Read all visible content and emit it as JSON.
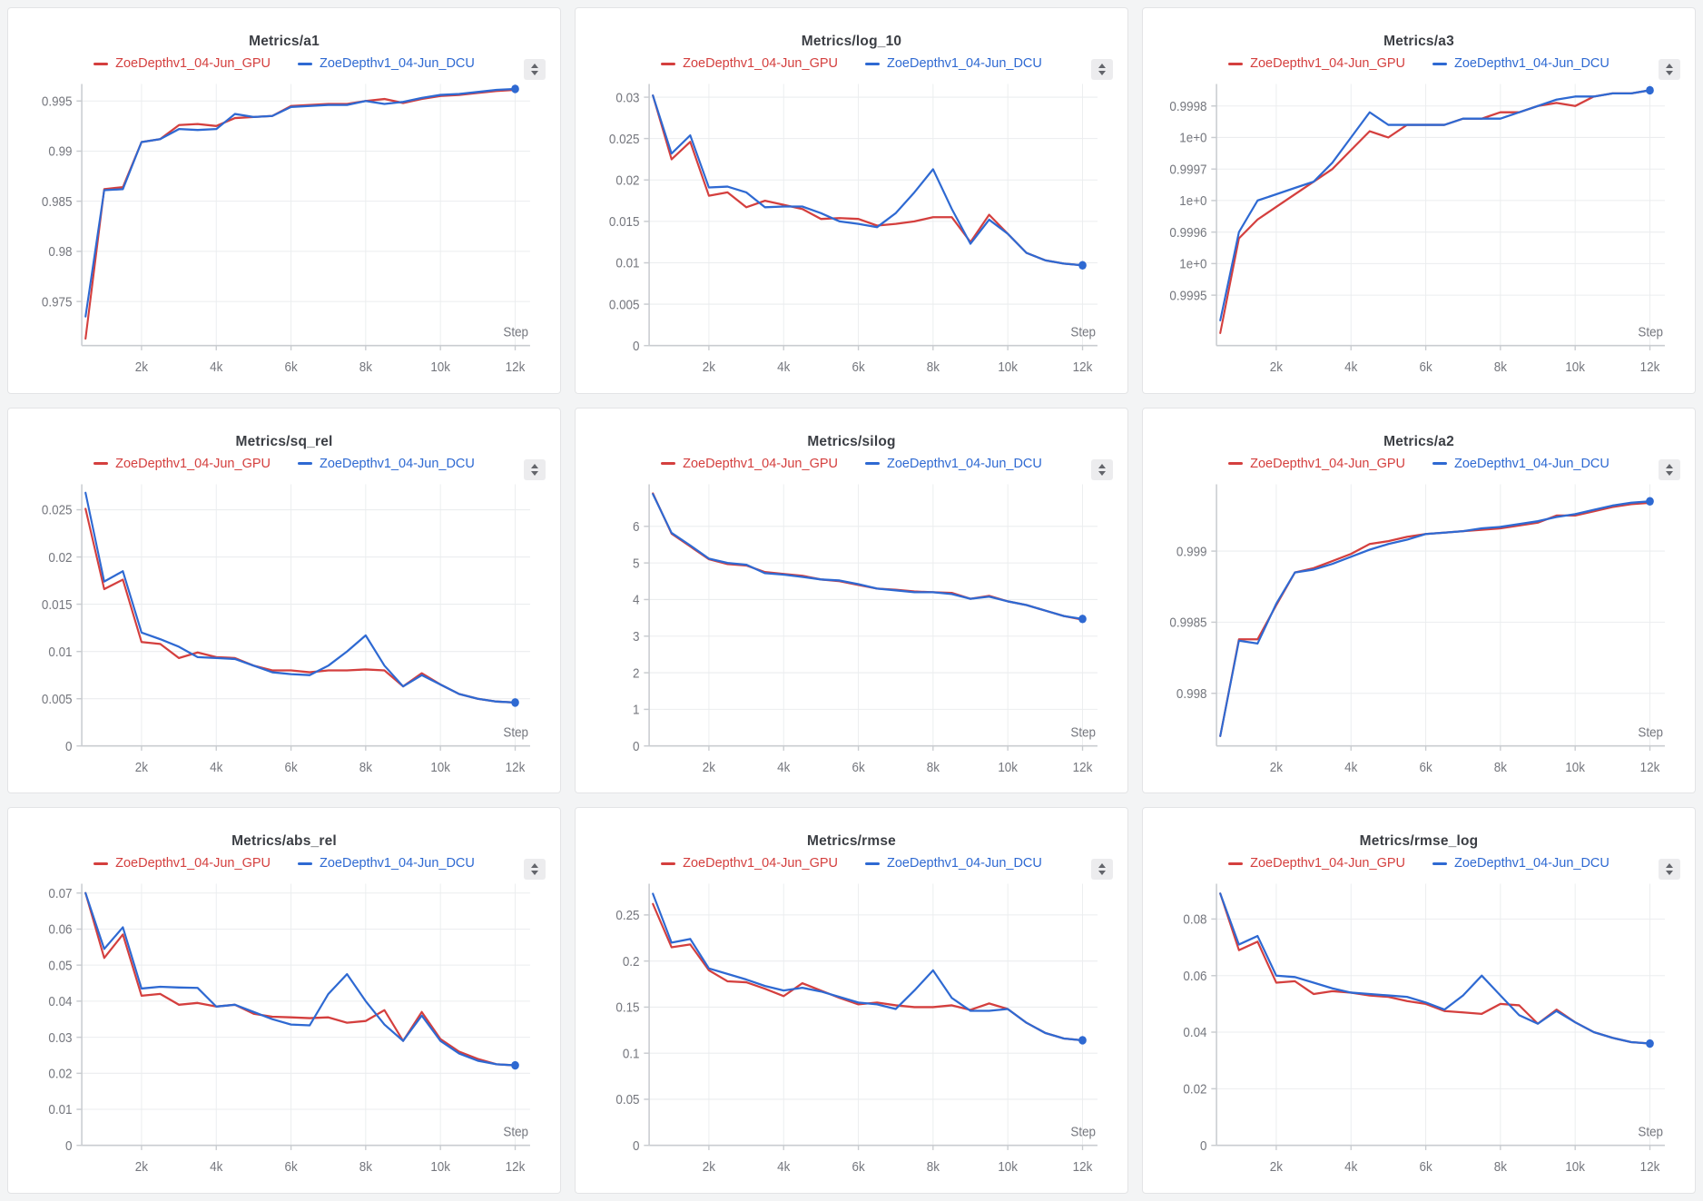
{
  "page": {
    "background": "#f3f4f5",
    "x_axis_label": "Step"
  },
  "runs": [
    {
      "name": "ZoeDepthv1_04-Jun_GPU",
      "color": "#d43f3e"
    },
    {
      "name": "ZoeDepthv1_04-Jun_DCU",
      "color": "#2e69d2"
    }
  ],
  "steps": [
    500,
    1000,
    1500,
    2000,
    2500,
    3000,
    3500,
    4000,
    4500,
    5000,
    5500,
    6000,
    6500,
    7000,
    7500,
    8000,
    8500,
    9000,
    9500,
    10000,
    10500,
    11000,
    11500,
    12000
  ],
  "xlim": [
    400,
    12400
  ],
  "x_ticks": [
    {
      "v": 2000,
      "label": "2k"
    },
    {
      "v": 4000,
      "label": "4k"
    },
    {
      "v": 6000,
      "label": "6k"
    },
    {
      "v": 8000,
      "label": "8k"
    },
    {
      "v": 10000,
      "label": "10k"
    },
    {
      "v": 12000,
      "label": "12k"
    }
  ],
  "chart_data": [
    {
      "type": "line",
      "title": "Metrics/a1",
      "xlabel": "Step",
      "grid": true,
      "legend_position": "top",
      "ylim": [
        0.9706,
        0.9967
      ],
      "y_ticks": [
        {
          "v": 0.975,
          "label": "0.975"
        },
        {
          "v": 0.98,
          "label": "0.98"
        },
        {
          "v": 0.985,
          "label": "0.985"
        },
        {
          "v": 0.99,
          "label": "0.99"
        },
        {
          "v": 0.995,
          "label": "0.995"
        }
      ],
      "series": [
        {
          "name": "ZoeDepthv1_04-Jun_GPU",
          "values": [
            0.9713,
            0.9862,
            0.9864,
            0.9909,
            0.9912,
            0.9926,
            0.9927,
            0.9925,
            0.9933,
            0.9934,
            0.9935,
            0.9945,
            0.9946,
            0.9947,
            0.9947,
            0.995,
            0.9952,
            0.9948,
            0.9952,
            0.9955,
            0.9956,
            0.9958,
            0.996,
            0.9961
          ]
        },
        {
          "name": "ZoeDepthv1_04-Jun_DCU",
          "values": [
            0.9735,
            0.9861,
            0.9862,
            0.9909,
            0.9912,
            0.9922,
            0.9921,
            0.9922,
            0.9937,
            0.9934,
            0.9935,
            0.9944,
            0.9945,
            0.9946,
            0.9946,
            0.995,
            0.9947,
            0.9949,
            0.9953,
            0.9956,
            0.9957,
            0.9959,
            0.9961,
            0.9962
          ]
        }
      ]
    },
    {
      "type": "line",
      "title": "Metrics/log_10",
      "xlabel": "Step",
      "grid": true,
      "legend_position": "top",
      "ylim": [
        0,
        0.0316
      ],
      "y_ticks": [
        {
          "v": 0,
          "label": "0"
        },
        {
          "v": 0.005,
          "label": "0.005"
        },
        {
          "v": 0.01,
          "label": "0.01"
        },
        {
          "v": 0.015,
          "label": "0.015"
        },
        {
          "v": 0.02,
          "label": "0.02"
        },
        {
          "v": 0.025,
          "label": "0.025"
        },
        {
          "v": 0.03,
          "label": "0.03"
        }
      ],
      "series": [
        {
          "name": "ZoeDepthv1_04-Jun_GPU",
          "values": [
            0.0302,
            0.0225,
            0.0246,
            0.0181,
            0.0185,
            0.0167,
            0.0175,
            0.017,
            0.0165,
            0.0153,
            0.0154,
            0.0153,
            0.0145,
            0.0147,
            0.015,
            0.0155,
            0.0155,
            0.0125,
            0.0158,
            0.0135,
            0.0112,
            0.0103,
            0.0099,
            0.0097
          ]
        },
        {
          "name": "ZoeDepthv1_04-Jun_DCU",
          "values": [
            0.0302,
            0.0232,
            0.0254,
            0.0191,
            0.0192,
            0.0185,
            0.0167,
            0.0168,
            0.0168,
            0.016,
            0.015,
            0.0147,
            0.0143,
            0.016,
            0.0185,
            0.0213,
            0.0165,
            0.0123,
            0.0152,
            0.0135,
            0.0112,
            0.0103,
            0.0099,
            0.0097
          ]
        }
      ]
    },
    {
      "type": "line",
      "title": "Metrics/a3",
      "xlabel": "Step",
      "grid": true,
      "legend_position": "top",
      "ylim": [
        0.99942,
        0.999835
      ],
      "y_ticks": [
        {
          "v": 0.9995,
          "label": "0.9995"
        },
        {
          "v": 0.99955,
          "label": "1e+0"
        },
        {
          "v": 0.9996,
          "label": "0.9996"
        },
        {
          "v": 0.99965,
          "label": "1e+0"
        },
        {
          "v": 0.9997,
          "label": "0.9997"
        },
        {
          "v": 0.99975,
          "label": "1e+0"
        },
        {
          "v": 0.9998,
          "label": "0.9998"
        }
      ],
      "series": [
        {
          "name": "ZoeDepthv1_04-Jun_GPU",
          "values": [
            0.99944,
            0.99959,
            0.99962,
            0.99964,
            0.99966,
            0.99968,
            0.9997,
            0.99973,
            0.99976,
            0.99975,
            0.99977,
            0.99977,
            0.99977,
            0.99978,
            0.99978,
            0.99979,
            0.99979,
            0.9998,
            0.999805,
            0.9998,
            0.999815,
            0.99982,
            0.99982,
            0.999825
          ]
        },
        {
          "name": "ZoeDepthv1_04-Jun_DCU",
          "values": [
            0.99946,
            0.9996,
            0.99965,
            0.99966,
            0.99967,
            0.99968,
            0.99971,
            0.99975,
            0.99979,
            0.99977,
            0.99977,
            0.99977,
            0.99977,
            0.99978,
            0.99978,
            0.99978,
            0.99979,
            0.9998,
            0.99981,
            0.999815,
            0.999815,
            0.99982,
            0.99982,
            0.999825
          ]
        }
      ]
    },
    {
      "type": "line",
      "title": "Metrics/sq_rel",
      "xlabel": "Step",
      "grid": true,
      "legend_position": "top",
      "ylim": [
        0,
        0.0277
      ],
      "y_ticks": [
        {
          "v": 0,
          "label": "0"
        },
        {
          "v": 0.005,
          "label": "0.005"
        },
        {
          "v": 0.01,
          "label": "0.01"
        },
        {
          "v": 0.015,
          "label": "0.015"
        },
        {
          "v": 0.02,
          "label": "0.02"
        },
        {
          "v": 0.025,
          "label": "0.025"
        }
      ],
      "series": [
        {
          "name": "ZoeDepthv1_04-Jun_GPU",
          "values": [
            0.0251,
            0.0166,
            0.0176,
            0.011,
            0.0108,
            0.0093,
            0.0099,
            0.0094,
            0.0093,
            0.0085,
            0.008,
            0.008,
            0.0078,
            0.008,
            0.008,
            0.0081,
            0.008,
            0.0063,
            0.0077,
            0.0065,
            0.0055,
            0.005,
            0.0047,
            0.0046
          ]
        },
        {
          "name": "ZoeDepthv1_04-Jun_DCU",
          "values": [
            0.0268,
            0.0174,
            0.0185,
            0.012,
            0.0113,
            0.0105,
            0.0094,
            0.0093,
            0.0092,
            0.0085,
            0.0078,
            0.0076,
            0.0075,
            0.0085,
            0.01,
            0.0117,
            0.0085,
            0.0063,
            0.0075,
            0.0065,
            0.0055,
            0.005,
            0.0047,
            0.0046
          ]
        }
      ]
    },
    {
      "type": "line",
      "title": "Metrics/silog",
      "xlabel": "Step",
      "grid": true,
      "legend_position": "top",
      "ylim": [
        0,
        7.15
      ],
      "y_ticks": [
        {
          "v": 0,
          "label": "0"
        },
        {
          "v": 1,
          "label": "1"
        },
        {
          "v": 2,
          "label": "2"
        },
        {
          "v": 3,
          "label": "3"
        },
        {
          "v": 4,
          "label": "4"
        },
        {
          "v": 5,
          "label": "5"
        },
        {
          "v": 6,
          "label": "6"
        }
      ],
      "series": [
        {
          "name": "ZoeDepthv1_04-Jun_GPU",
          "values": [
            6.9,
            5.8,
            5.45,
            5.1,
            4.97,
            4.93,
            4.75,
            4.7,
            4.65,
            4.55,
            4.5,
            4.4,
            4.3,
            4.27,
            4.22,
            4.2,
            4.18,
            4.02,
            4.1,
            3.95,
            3.85,
            3.7,
            3.55,
            3.45
          ]
        },
        {
          "name": "ZoeDepthv1_04-Jun_DCU",
          "values": [
            6.88,
            5.82,
            5.48,
            5.12,
            5.0,
            4.95,
            4.72,
            4.68,
            4.62,
            4.55,
            4.52,
            4.42,
            4.3,
            4.25,
            4.2,
            4.2,
            4.15,
            4.02,
            4.08,
            3.95,
            3.85,
            3.7,
            3.55,
            3.47
          ]
        }
      ]
    },
    {
      "type": "line",
      "title": "Metrics/a2",
      "xlabel": "Step",
      "grid": true,
      "legend_position": "top",
      "ylim": [
        0.99763,
        0.99947
      ],
      "y_ticks": [
        {
          "v": 0.998,
          "label": "0.998"
        },
        {
          "v": 0.9985,
          "label": "0.9985"
        },
        {
          "v": 0.999,
          "label": "0.999"
        }
      ],
      "series": [
        {
          "name": "ZoeDepthv1_04-Jun_GPU",
          "values": [
            0.9977,
            0.99838,
            0.99838,
            0.99862,
            0.99885,
            0.99888,
            0.99893,
            0.99898,
            0.99905,
            0.99907,
            0.9991,
            0.99912,
            0.99913,
            0.99914,
            0.99915,
            0.99916,
            0.99918,
            0.9992,
            0.99925,
            0.99925,
            0.99928,
            0.99931,
            0.99933,
            0.99934
          ]
        },
        {
          "name": "ZoeDepthv1_04-Jun_DCU",
          "values": [
            0.9977,
            0.99837,
            0.99835,
            0.99863,
            0.99885,
            0.99887,
            0.99891,
            0.99896,
            0.99901,
            0.99905,
            0.99908,
            0.99912,
            0.99913,
            0.99914,
            0.99916,
            0.99917,
            0.99919,
            0.99921,
            0.99924,
            0.99926,
            0.99929,
            0.99932,
            0.99934,
            0.99935
          ]
        }
      ]
    },
    {
      "type": "line",
      "title": "Metrics/abs_rel",
      "xlabel": "Step",
      "grid": true,
      "legend_position": "top",
      "ylim": [
        0,
        0.0726
      ],
      "y_ticks": [
        {
          "v": 0,
          "label": "0"
        },
        {
          "v": 0.01,
          "label": "0.01"
        },
        {
          "v": 0.02,
          "label": "0.02"
        },
        {
          "v": 0.03,
          "label": "0.03"
        },
        {
          "v": 0.04,
          "label": "0.04"
        },
        {
          "v": 0.05,
          "label": "0.05"
        },
        {
          "v": 0.06,
          "label": "0.06"
        },
        {
          "v": 0.07,
          "label": "0.07"
        }
      ],
      "series": [
        {
          "name": "ZoeDepthv1_04-Jun_GPU",
          "values": [
            0.07,
            0.052,
            0.0585,
            0.0415,
            0.042,
            0.039,
            0.0395,
            0.0385,
            0.039,
            0.0365,
            0.0357,
            0.0355,
            0.0353,
            0.0355,
            0.034,
            0.0345,
            0.0375,
            0.029,
            0.037,
            0.0295,
            0.026,
            0.024,
            0.0225,
            0.0222
          ]
        },
        {
          "name": "ZoeDepthv1_04-Jun_DCU",
          "values": [
            0.07,
            0.0545,
            0.0605,
            0.0435,
            0.044,
            0.0438,
            0.0437,
            0.0385,
            0.039,
            0.037,
            0.035,
            0.0335,
            0.0333,
            0.042,
            0.0475,
            0.04,
            0.0335,
            0.029,
            0.036,
            0.029,
            0.0255,
            0.0235,
            0.0225,
            0.0222
          ]
        }
      ]
    },
    {
      "type": "line",
      "title": "Metrics/rmse",
      "xlabel": "Step",
      "grid": true,
      "legend_position": "top",
      "ylim": [
        0,
        0.284
      ],
      "y_ticks": [
        {
          "v": 0,
          "label": "0"
        },
        {
          "v": 0.05,
          "label": "0.05"
        },
        {
          "v": 0.1,
          "label": "0.1"
        },
        {
          "v": 0.15,
          "label": "0.15"
        },
        {
          "v": 0.2,
          "label": "0.2"
        },
        {
          "v": 0.25,
          "label": "0.25"
        }
      ],
      "series": [
        {
          "name": "ZoeDepthv1_04-Jun_GPU",
          "values": [
            0.262,
            0.215,
            0.218,
            0.19,
            0.178,
            0.177,
            0.17,
            0.162,
            0.176,
            0.168,
            0.16,
            0.153,
            0.155,
            0.152,
            0.15,
            0.15,
            0.152,
            0.147,
            0.154,
            0.148,
            0.133,
            0.122,
            0.116,
            0.114
          ]
        },
        {
          "name": "ZoeDepthv1_04-Jun_DCU",
          "values": [
            0.273,
            0.22,
            0.224,
            0.192,
            0.186,
            0.18,
            0.173,
            0.168,
            0.171,
            0.167,
            0.161,
            0.155,
            0.153,
            0.148,
            0.168,
            0.19,
            0.16,
            0.146,
            0.146,
            0.148,
            0.133,
            0.122,
            0.116,
            0.114
          ]
        }
      ]
    },
    {
      "type": "line",
      "title": "Metrics/rmse_log",
      "xlabel": "Step",
      "grid": true,
      "legend_position": "top",
      "ylim": [
        0,
        0.0925
      ],
      "y_ticks": [
        {
          "v": 0,
          "label": "0"
        },
        {
          "v": 0.02,
          "label": "0.02"
        },
        {
          "v": 0.04,
          "label": "0.04"
        },
        {
          "v": 0.06,
          "label": "0.06"
        },
        {
          "v": 0.08,
          "label": "0.08"
        }
      ],
      "series": [
        {
          "name": "ZoeDepthv1_04-Jun_GPU",
          "values": [
            0.089,
            0.069,
            0.072,
            0.0575,
            0.058,
            0.0535,
            0.0545,
            0.054,
            0.053,
            0.0525,
            0.051,
            0.05,
            0.0475,
            0.047,
            0.0465,
            0.05,
            0.0495,
            0.043,
            0.048,
            0.0435,
            0.04,
            0.038,
            0.0365,
            0.036
          ]
        },
        {
          "name": "ZoeDepthv1_04-Jun_DCU",
          "values": [
            0.089,
            0.071,
            0.074,
            0.06,
            0.0595,
            0.0575,
            0.0555,
            0.054,
            0.0535,
            0.053,
            0.0525,
            0.0505,
            0.048,
            0.053,
            0.06,
            0.053,
            0.046,
            0.043,
            0.0475,
            0.0435,
            0.04,
            0.038,
            0.0365,
            0.036
          ]
        }
      ]
    }
  ]
}
